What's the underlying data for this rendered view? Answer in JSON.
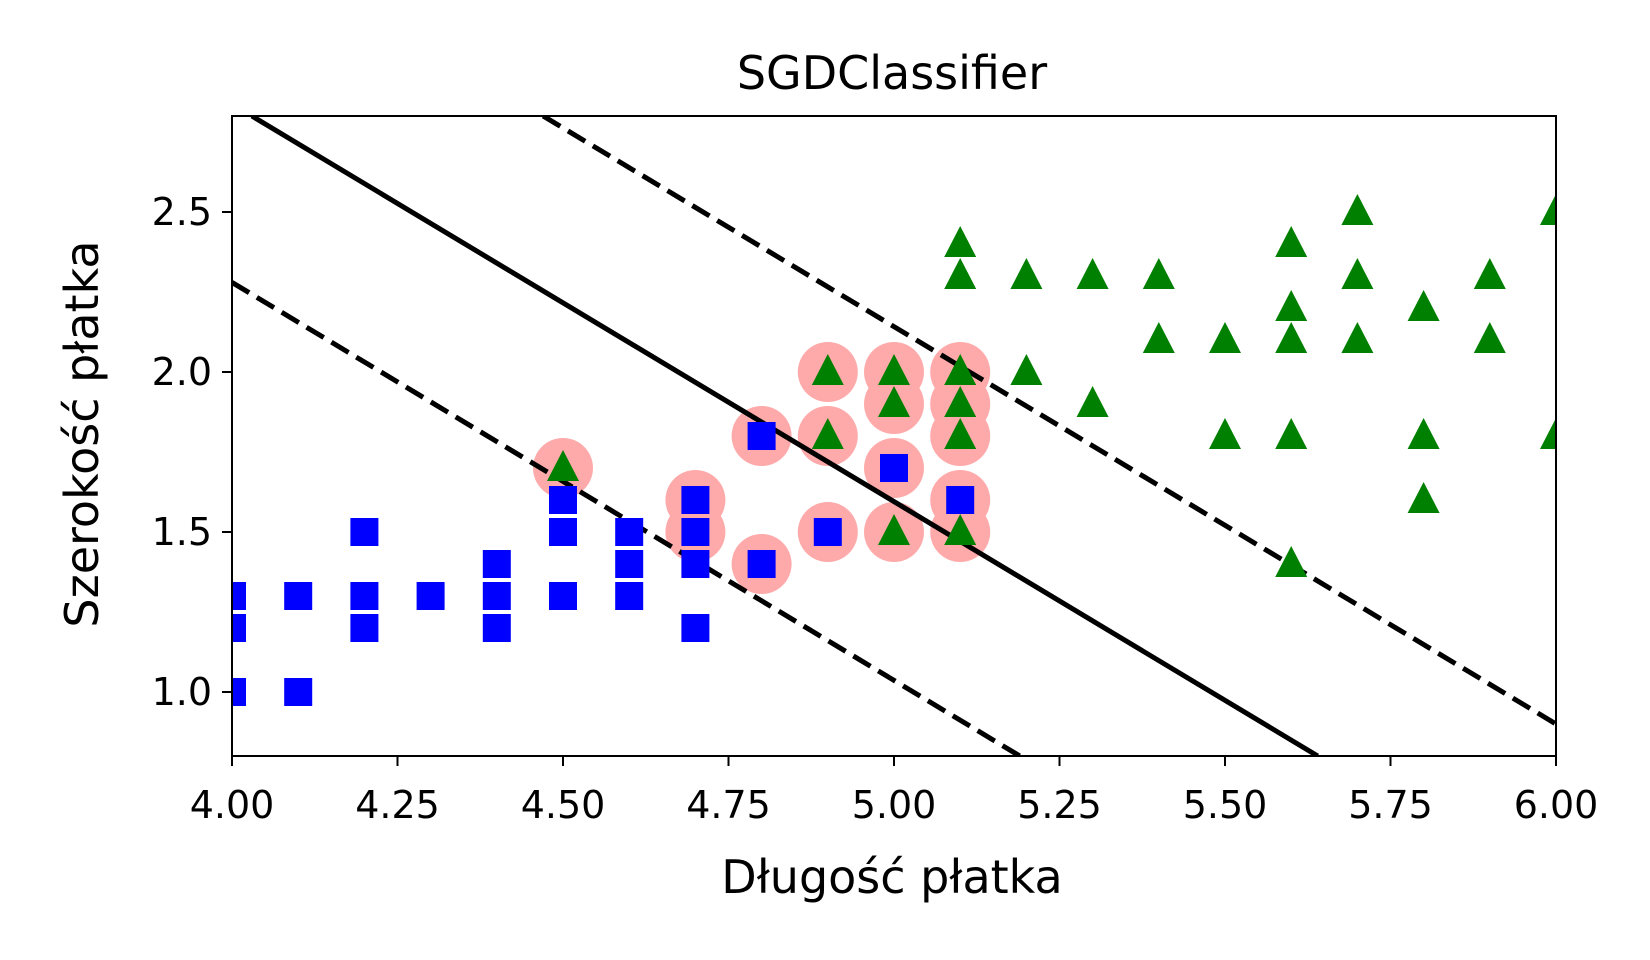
{
  "chart_data": {
    "type": "scatter",
    "title": "SGDClassifier",
    "xlabel": "Długość płatka",
    "ylabel": "Szerokość płatka",
    "xlim": [
      4.0,
      6.0
    ],
    "ylim": [
      0.8,
      2.8
    ],
    "x_ticks": [
      "4.00",
      "4.25",
      "4.50",
      "4.75",
      "5.00",
      "5.25",
      "5.50",
      "5.75",
      "6.00"
    ],
    "y_ticks": [
      "1.0",
      "1.5",
      "2.0",
      "2.5"
    ],
    "grid": false,
    "legend": "none",
    "colors": {
      "squares": "#0000ff",
      "triangles": "#008000",
      "support_vectors": "#ffaaaa",
      "boundary": "#000000"
    },
    "series": [
      {
        "marker": "square",
        "color": "#0000ff",
        "points": [
          [
            4.0,
            1.3
          ],
          [
            4.0,
            1.2
          ],
          [
            4.0,
            1.0
          ],
          [
            4.1,
            1.3
          ],
          [
            4.1,
            1.0
          ],
          [
            4.2,
            1.5
          ],
          [
            4.2,
            1.3
          ],
          [
            4.2,
            1.2
          ],
          [
            4.3,
            1.3
          ],
          [
            4.4,
            1.4
          ],
          [
            4.4,
            1.3
          ],
          [
            4.4,
            1.2
          ],
          [
            4.5,
            1.6
          ],
          [
            4.5,
            1.5
          ],
          [
            4.5,
            1.3
          ],
          [
            4.6,
            1.5
          ],
          [
            4.6,
            1.4
          ],
          [
            4.6,
            1.3
          ],
          [
            4.7,
            1.6
          ],
          [
            4.7,
            1.5
          ],
          [
            4.7,
            1.4
          ],
          [
            4.7,
            1.2
          ],
          [
            4.8,
            1.8
          ],
          [
            4.8,
            1.4
          ],
          [
            4.9,
            1.5
          ],
          [
            5.0,
            1.7
          ],
          [
            5.1,
            1.6
          ]
        ]
      },
      {
        "marker": "triangle",
        "color": "#008000",
        "points": [
          [
            4.5,
            1.7
          ],
          [
            4.9,
            2.0
          ],
          [
            4.9,
            1.8
          ],
          [
            5.0,
            2.0
          ],
          [
            5.0,
            1.9
          ],
          [
            5.0,
            1.5
          ],
          [
            5.1,
            2.4
          ],
          [
            5.1,
            2.3
          ],
          [
            5.1,
            2.0
          ],
          [
            5.1,
            1.9
          ],
          [
            5.1,
            1.8
          ],
          [
            5.1,
            1.5
          ],
          [
            5.2,
            2.3
          ],
          [
            5.2,
            2.0
          ],
          [
            5.3,
            2.3
          ],
          [
            5.3,
            1.9
          ],
          [
            5.4,
            2.3
          ],
          [
            5.4,
            2.1
          ],
          [
            5.5,
            2.1
          ],
          [
            5.5,
            1.8
          ],
          [
            5.6,
            2.4
          ],
          [
            5.6,
            2.2
          ],
          [
            5.6,
            2.1
          ],
          [
            5.6,
            1.8
          ],
          [
            5.6,
            1.4
          ],
          [
            5.7,
            2.5
          ],
          [
            5.7,
            2.3
          ],
          [
            5.7,
            2.1
          ],
          [
            5.8,
            2.2
          ],
          [
            5.8,
            1.8
          ],
          [
            5.8,
            1.6
          ],
          [
            5.9,
            2.3
          ],
          [
            5.9,
            2.1
          ],
          [
            6.0,
            2.5
          ],
          [
            6.0,
            1.8
          ]
        ]
      }
    ],
    "support_vectors": [
      [
        4.5,
        1.7
      ],
      [
        4.7,
        1.6
      ],
      [
        4.7,
        1.5
      ],
      [
        4.8,
        1.8
      ],
      [
        4.8,
        1.4
      ],
      [
        4.9,
        2.0
      ],
      [
        4.9,
        1.8
      ],
      [
        4.9,
        1.5
      ],
      [
        5.0,
        2.0
      ],
      [
        5.0,
        1.9
      ],
      [
        5.0,
        1.7
      ],
      [
        5.0,
        1.5
      ],
      [
        5.1,
        2.0
      ],
      [
        5.1,
        1.9
      ],
      [
        5.1,
        1.8
      ],
      [
        5.1,
        1.6
      ],
      [
        5.1,
        1.5
      ]
    ],
    "lines": [
      {
        "style": "solid",
        "points": [
          [
            4.03,
            2.8
          ],
          [
            5.64,
            0.8
          ]
        ]
      },
      {
        "style": "dashed",
        "points": [
          [
            4.0,
            2.28
          ],
          [
            5.19,
            0.8
          ]
        ]
      },
      {
        "style": "dashed",
        "points": [
          [
            4.47,
            2.8
          ],
          [
            6.0,
            0.9
          ]
        ]
      }
    ]
  }
}
